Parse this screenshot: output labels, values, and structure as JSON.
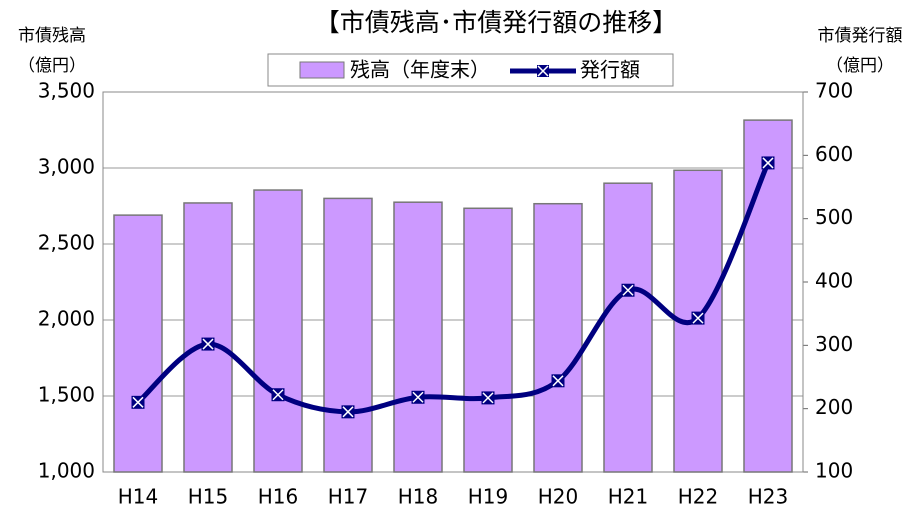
{
  "chart_data": {
    "type": "bar_line",
    "title": "【市債残高･市債発行額の推移】",
    "ylabel": [
      "市債残高",
      "（億円）"
    ],
    "y2label": [
      "市債発行額",
      "（億円）"
    ],
    "categories": [
      "H14",
      "H15",
      "H16",
      "H17",
      "H18",
      "H19",
      "H20",
      "H21",
      "H22",
      "H23"
    ],
    "series": [
      {
        "name": "残高（年度末）",
        "type": "bar",
        "color": "#cc99ff",
        "axis": "y",
        "values": [
          2690,
          2770,
          2855,
          2800,
          2775,
          2735,
          2765,
          2900,
          2985,
          3315
        ]
      },
      {
        "name": "発行額",
        "type": "line",
        "color": "#000080",
        "axis": "y2",
        "values": [
          210,
          302,
          222,
          195,
          218,
          217,
          244,
          387,
          343,
          588
        ]
      }
    ],
    "ylim": [
      1000,
      3500
    ],
    "yticks": [
      {
        "value": 1000,
        "label": "1,000"
      },
      {
        "value": 1500,
        "label": "1,500"
      },
      {
        "value": 2000,
        "label": "2,000"
      },
      {
        "value": 2500,
        "label": "2,500"
      },
      {
        "value": 3000,
        "label": "3,000"
      },
      {
        "value": 3500,
        "label": "3,500"
      }
    ],
    "y2lim": [
      100,
      700
    ],
    "y2ticks": [
      100,
      200,
      300,
      400,
      500,
      600,
      700
    ],
    "grid": true
  }
}
